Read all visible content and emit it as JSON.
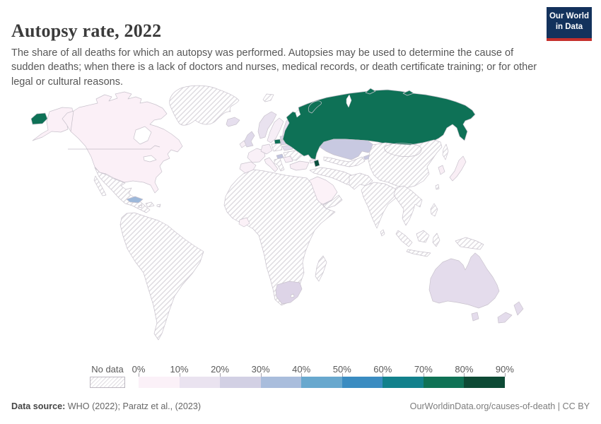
{
  "header": {
    "title": "Autopsy rate, 2022",
    "subtitle": "The share of all deaths for which an autopsy was performed. Autopsies may be used to determine the cause of sudden deaths; when there is a lack of doctors and nurses, medical records, or death certificate training; or for other legal or cultural reasons."
  },
  "logo": {
    "line1": "Our World",
    "line2": "in Data",
    "bg": "#13325c",
    "accent": "#c5302c"
  },
  "legend": {
    "no_data_label": "No data",
    "tick_labels": [
      "0%",
      "10%",
      "20%",
      "30%",
      "40%",
      "50%",
      "60%",
      "70%",
      "80%",
      "90%"
    ],
    "bin_colors": [
      "#fbf1f8",
      "#eae3f0",
      "#d2d0e4",
      "#a9bddc",
      "#68a8ce",
      "#3a8cc1",
      "#12818c",
      "#0f7255",
      "#0d4a35"
    ]
  },
  "footer": {
    "source_label": "Data source:",
    "source_text": " WHO (2022); Paratz et al., (2023)",
    "credit": "OurWorldinData.org/causes-of-death | CC BY"
  },
  "map": {
    "sea": "#ffffff",
    "border_stroke": "#c9c3cd",
    "hatch_line": "#dfdce1",
    "fills": {
      "no_data": "hatch",
      "russia": "#0e7156",
      "baltic_dark": "#0e7156",
      "azerbaijan": "#0a4f3d",
      "north_america": "#fbf0f7",
      "cuba": "#9db8da",
      "kazakhstan": "#c8c9e1",
      "kyrgyz": "#c8c9e1",
      "australia": "#e4dcec",
      "nz": "#e4dcec",
      "south_africa": "#ddd4e7",
      "uk": "#dfd9ea",
      "ireland": "#f7eff6",
      "iceland": "#e6dfee",
      "norway": "#e9e2ef",
      "sweden": "#f6eef6",
      "finland": "#e7e1ee",
      "baltic_upper": "#d9d3e6",
      "latvia": "#d9d3e6",
      "belarus": "#e0daeb",
      "hungary": "#bfc3dd",
      "romania": "#f8eef6",
      "georgia": "#f8eef6",
      "france": "#f9f0f7",
      "iberia": "#f9f0f7",
      "germany": "#f7eef6",
      "italy": "#f9f0f7",
      "turkey": "#f8eef5",
      "saudi": "#fcf2f8",
      "cote_ivoire": "#fbf1f7",
      "japan": "#f9eef5",
      "korea": "#f8eef5",
      "white": "#ffffff"
    }
  },
  "chart_data": {
    "type": "choropleth-map",
    "title": "Autopsy rate, 2022",
    "unit": "%",
    "bin_edges": [
      0,
      10,
      20,
      30,
      40,
      50,
      60,
      70,
      80,
      90
    ],
    "legend_position": "bottom",
    "countries": [
      {
        "name": "Russia",
        "bin": "70-80%"
      },
      {
        "name": "Lithuania",
        "bin": "70-80%"
      },
      {
        "name": "Azerbaijan",
        "bin": "80-90%"
      },
      {
        "name": "Kazakhstan",
        "bin": "20-30%"
      },
      {
        "name": "Kyrgyzstan",
        "bin": "20-30%"
      },
      {
        "name": "Hungary",
        "bin": "30-40%"
      },
      {
        "name": "Cuba",
        "bin": "30-40%"
      },
      {
        "name": "Latvia",
        "bin": "20-30%"
      },
      {
        "name": "Estonia",
        "bin": "20-30%"
      },
      {
        "name": "Australia",
        "bin": "10-20%"
      },
      {
        "name": "New Zealand",
        "bin": "10-20%"
      },
      {
        "name": "South Africa",
        "bin": "10-20%"
      },
      {
        "name": "United Kingdom",
        "bin": "10-20%"
      },
      {
        "name": "Norway",
        "bin": "10-20%"
      },
      {
        "name": "Finland",
        "bin": "10-20%"
      },
      {
        "name": "Iceland",
        "bin": "10-20%"
      },
      {
        "name": "Belarus",
        "bin": "10-20%"
      },
      {
        "name": "United States",
        "bin": "0-10%"
      },
      {
        "name": "Canada",
        "bin": "0-10%"
      },
      {
        "name": "Japan",
        "bin": "0-10%"
      },
      {
        "name": "South Korea",
        "bin": "0-10%"
      },
      {
        "name": "Saudi Arabia",
        "bin": "0-10%"
      },
      {
        "name": "Cote d'Ivoire",
        "bin": "0-10%"
      },
      {
        "name": "France",
        "bin": "0-10%"
      },
      {
        "name": "Spain",
        "bin": "0-10%"
      },
      {
        "name": "Germany",
        "bin": "0-10%"
      },
      {
        "name": "Sweden",
        "bin": "0-10%"
      },
      {
        "name": "Italy",
        "bin": "0-10%"
      },
      {
        "name": "Turkey",
        "bin": "0-10%"
      },
      {
        "name": "Romania",
        "bin": "0-10%"
      },
      {
        "name": "Georgia",
        "bin": "0-10%"
      }
    ],
    "no_data_regions": [
      "Greenland",
      "Mexico",
      "Central America",
      "South America",
      "most of Africa",
      "Poland",
      "Ukraine",
      "Balkans",
      "Iran",
      "China",
      "Mongolia",
      "India",
      "Southeast Asia",
      "Indonesia",
      "Philippines",
      "Papua New Guinea",
      "Madagascar"
    ]
  }
}
